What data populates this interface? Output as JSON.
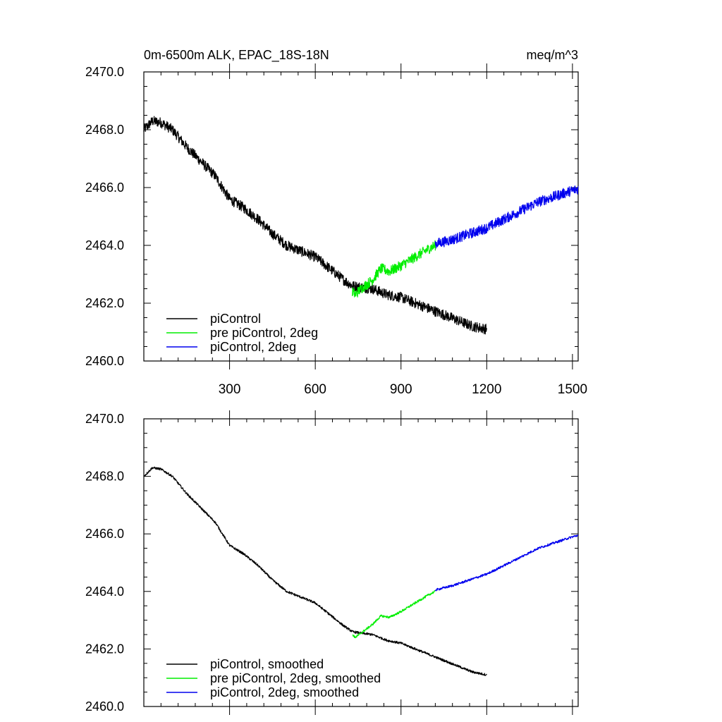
{
  "chart_data": [
    {
      "type": "line",
      "title": "0m-6500m ALK, EPAC_18S-18N",
      "units": "meq/m^3",
      "xlim": [
        0,
        1520
      ],
      "ylim": [
        2460,
        2470
      ],
      "xticks": [
        300,
        600,
        900,
        1200,
        1500
      ],
      "xtick_labels": [
        "300",
        "600",
        "900",
        "1200",
        "1500"
      ],
      "yticks": [
        2460,
        2462,
        2464,
        2466,
        2468,
        2470
      ],
      "ytick_labels": [
        "2460.0",
        "2462.0",
        "2464.0",
        "2466.0",
        "2468.0",
        "2470.0"
      ],
      "legend": [
        {
          "label": "piControl",
          "color": "#000000"
        },
        {
          "label": "pre piControl, 2deg",
          "color": "#00ee00"
        },
        {
          "label": "piControl, 2deg",
          "color": "#0000ee"
        }
      ],
      "series": [
        {
          "name": "piControl",
          "color": "#000000",
          "noise": 0.18,
          "x": [
            0,
            30,
            60,
            100,
            150,
            200,
            250,
            300,
            350,
            400,
            450,
            500,
            550,
            600,
            650,
            700,
            730,
            760,
            800,
            850,
            900,
            950,
            1000,
            1050,
            1100,
            1150,
            1200
          ],
          "y": [
            2468.0,
            2468.3,
            2468.25,
            2468.0,
            2467.4,
            2466.9,
            2466.4,
            2465.6,
            2465.3,
            2464.9,
            2464.4,
            2464.0,
            2463.8,
            2463.6,
            2463.2,
            2462.8,
            2462.6,
            2462.55,
            2462.5,
            2462.3,
            2462.2,
            2462.0,
            2461.8,
            2461.6,
            2461.4,
            2461.2,
            2461.1
          ]
        },
        {
          "name": "pre piControl, 2deg",
          "color": "#00ee00",
          "noise": 0.18,
          "x": [
            730,
            740,
            760,
            800,
            830,
            860,
            900,
            950,
            1000,
            1020
          ],
          "y": [
            2462.4,
            2462.3,
            2462.5,
            2462.8,
            2463.2,
            2463.1,
            2463.3,
            2463.6,
            2463.9,
            2464.0
          ]
        },
        {
          "name": "piControl, 2deg",
          "color": "#0000ee",
          "noise": 0.18,
          "x": [
            1020,
            1080,
            1140,
            1200,
            1260,
            1320,
            1380,
            1440,
            1500,
            1520
          ],
          "y": [
            2464.05,
            2464.2,
            2464.4,
            2464.6,
            2464.9,
            2465.2,
            2465.5,
            2465.7,
            2465.9,
            2465.95
          ]
        }
      ]
    },
    {
      "type": "line",
      "xlim": [
        0,
        1520
      ],
      "ylim": [
        2460,
        2470
      ],
      "xticks": [
        300,
        600,
        900,
        1200,
        1500
      ],
      "yticks": [
        2460,
        2462,
        2464,
        2466,
        2468,
        2470
      ],
      "ytick_labels": [
        "2460.0",
        "2462.0",
        "2464.0",
        "2466.0",
        "2468.0",
        "2470.0"
      ],
      "legend": [
        {
          "label": "piControl, smoothed",
          "color": "#000000"
        },
        {
          "label": "pre piControl, 2deg, smoothed",
          "color": "#00ee00"
        },
        {
          "label": "piControl, 2deg, smoothed",
          "color": "#0000ee"
        }
      ],
      "series": [
        {
          "name": "piControl, smoothed",
          "color": "#000000",
          "noise": 0.04,
          "x": [
            0,
            30,
            60,
            100,
            150,
            200,
            250,
            300,
            350,
            400,
            450,
            500,
            550,
            600,
            650,
            700,
            730,
            760,
            800,
            850,
            900,
            950,
            1000,
            1050,
            1100,
            1150,
            1200
          ],
          "y": [
            2468.0,
            2468.3,
            2468.25,
            2468.0,
            2467.4,
            2466.9,
            2466.4,
            2465.6,
            2465.3,
            2464.9,
            2464.4,
            2464.0,
            2463.8,
            2463.6,
            2463.2,
            2462.8,
            2462.6,
            2462.55,
            2462.5,
            2462.3,
            2462.2,
            2462.0,
            2461.8,
            2461.6,
            2461.4,
            2461.2,
            2461.1
          ]
        },
        {
          "name": "pre piControl, 2deg, smoothed",
          "color": "#00ee00",
          "noise": 0.04,
          "x": [
            730,
            740,
            760,
            800,
            830,
            860,
            900,
            950,
            1000,
            1020
          ],
          "y": [
            2462.5,
            2462.4,
            2462.55,
            2462.85,
            2463.15,
            2463.1,
            2463.3,
            2463.6,
            2463.9,
            2464.0
          ]
        },
        {
          "name": "piControl, 2deg, smoothed",
          "color": "#0000ee",
          "noise": 0.04,
          "x": [
            1020,
            1080,
            1140,
            1200,
            1260,
            1320,
            1380,
            1440,
            1500,
            1520
          ],
          "y": [
            2464.05,
            2464.2,
            2464.4,
            2464.6,
            2464.9,
            2465.2,
            2465.5,
            2465.7,
            2465.9,
            2465.95
          ]
        }
      ]
    }
  ]
}
